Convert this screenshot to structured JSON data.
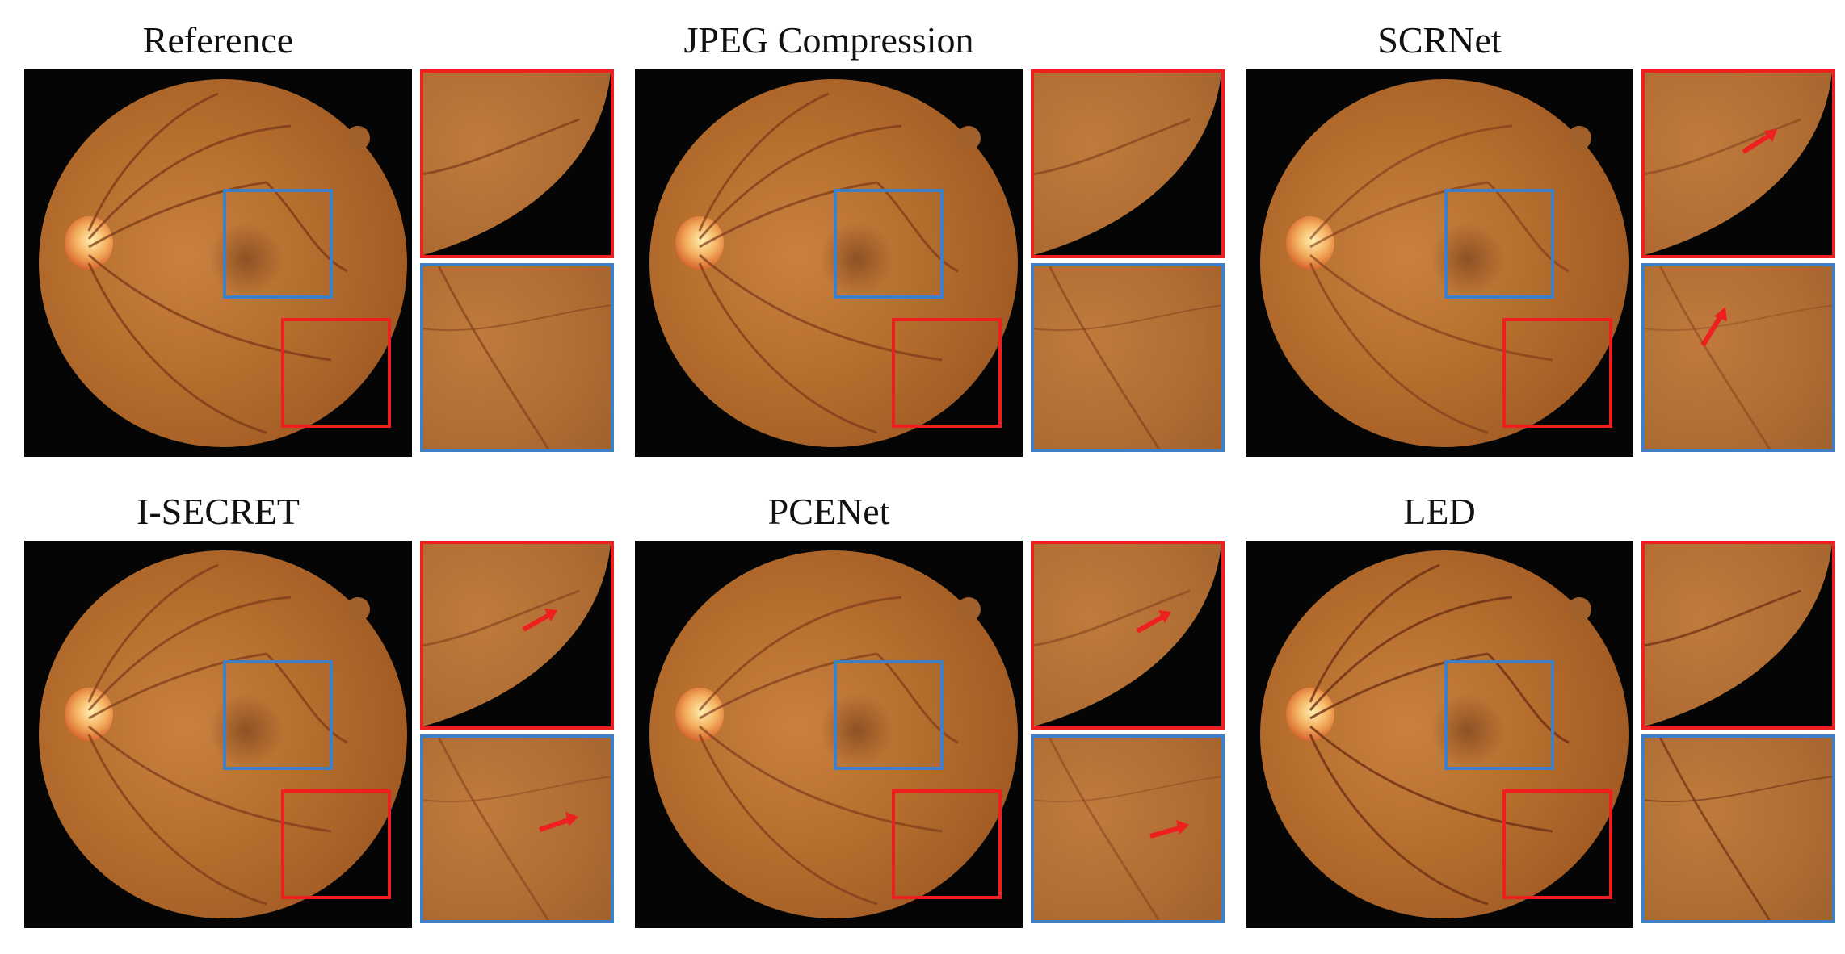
{
  "figure": {
    "panels": [
      {
        "title": "Reference",
        "has_arrows": false
      },
      {
        "title": "JPEG Compression",
        "has_arrows": false
      },
      {
        "title": "SCRNet",
        "has_arrows": true
      },
      {
        "title": "I-SECRET",
        "has_arrows": true
      },
      {
        "title": "PCENet",
        "has_arrows": true
      },
      {
        "title": "LED",
        "has_arrows": false
      }
    ],
    "colors": {
      "red_box": "#ee1f1f",
      "blue_box": "#3f7fc6",
      "background": "#050505",
      "fundus": "#b8702f"
    }
  }
}
